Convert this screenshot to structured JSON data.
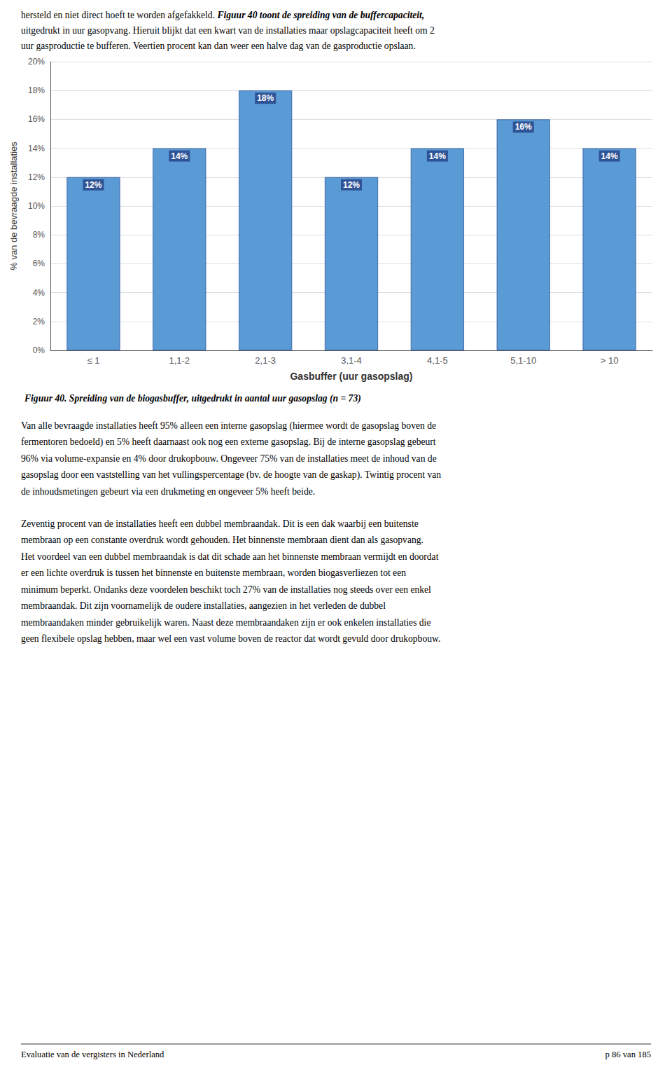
{
  "chart_data": {
    "type": "bar",
    "title": "Figuur 40. Spreiding van de biogasbuffer, uitgedrukt in aantal uur gasopslag (n = 73)",
    "xlabel": "Gasbuffer (uur gasopslag)",
    "ylabel": "% van de bevraagde installaties",
    "categories": [
      "≤ 1",
      "1,1-2",
      "2,1-3",
      "3,1-4",
      "4,1-5",
      "5,1-10",
      "> 10"
    ],
    "values": [
      12,
      14,
      18,
      12,
      14,
      16,
      14
    ],
    "value_labels": [
      "12%",
      "14%",
      "18%",
      "12%",
      "14%",
      "16%",
      "14%"
    ],
    "data_labels": true,
    "color": "#5B9BD5",
    "ylim": [
      0,
      20
    ],
    "yticks": [
      {
        "value": 0,
        "label": "0%"
      },
      {
        "value": 2,
        "label": "2%"
      },
      {
        "value": 4,
        "label": "4%"
      },
      {
        "value": 6,
        "label": "6%"
      },
      {
        "value": 8,
        "label": "8%"
      },
      {
        "value": 10,
        "label": "10%"
      },
      {
        "value": 12,
        "label": "12%"
      },
      {
        "value": 14,
        "label": "14%"
      },
      {
        "value": 16,
        "label": "16%"
      },
      {
        "value": 18,
        "label": "18%"
      },
      {
        "value": 20,
        "label": "20%"
      }
    ],
    "grid": true,
    "annotations": [
      "hersteld en niet direct hoeft te worden afgefakkeld. ",
      "Figuur 40 toont de spreiding van de buffercapaciteit,",
      "uitgedrukt in uur gasopvang. Hieruit blijkt dat een kwart van de installaties maar opslagcapaciteit heeft om 2",
      "uur gasproductie te bufferen. Veertien procent kan dan weer een halve dag van de gasproductie opslaan.",
      "Van alle bevraagde installaties heeft 95% alleen een interne gasopslag (hiermee wordt de gasopslag boven de",
      "fermentoren bedoeld) en 5% heeft daarnaast ook nog een externe gasopslag. Bij de interne gasopslag gebeurt",
      "96% via volume-expansie en 4% door drukopbouw. Ongeveer 75% van de installaties meet de inhoud van de",
      "gasopslag door een vaststelling van het vullingspercentage (bv. de hoogte van de gaskap). Twintig procent van",
      "de inhoudsmetingen gebeurt via een drukmeting en ongeveer 5% heeft beide.",
      "Zeventig procent van de installaties heeft een dubbel membraandak. Dit is een dak waarbij een buitenste",
      "membraan op een constante overdruk wordt gehouden. Het binnenste membraan dient dan als gasopvang.",
      "Het voordeel van een dubbel membraandak is dat dit schade aan het binnenste membraan vermijdt en doordat",
      "er een lichte overdruk is tussen het binnenste en buitenste membraan, worden biogasverliezen tot een",
      "minimum beperkt. Ondanks deze voordelen beschikt toch 27% van de installaties nog steeds over een enkel",
      "membraandak. Dit zijn voornamelijk de oudere installaties, aangezien in het verleden de dubbel",
      "membraandaken minder gebruikelijk waren. Naast deze membraandaken zijn er ook enkelen installaties die",
      "geen flexibele opslag hebben, maar wel een vast volume boven de reactor dat wordt gevuld door drukopbouw.",
      "Evaluatie van de vergisters in Nederland",
      "p 86 van 185"
    ]
  }
}
